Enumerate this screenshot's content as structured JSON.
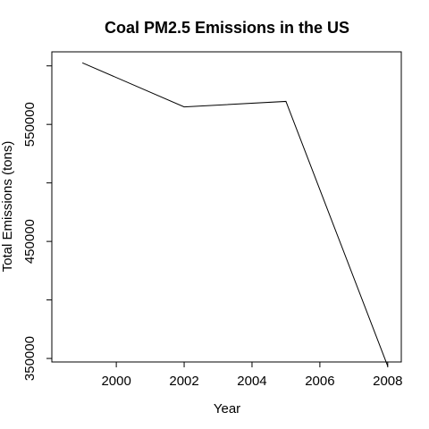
{
  "chart_data": {
    "type": "line",
    "title": "Coal PM2.5 Emissions in the US",
    "xlabel": "Year",
    "ylabel": "Total Emissions (tons)",
    "x": [
      1999,
      2002,
      2005,
      2008
    ],
    "series": [
      {
        "values": [
          602624,
          564940,
          569655,
          343432
        ]
      }
    ],
    "xlim": [
      1998.1,
      2008.4
    ],
    "ylim": [
      347000,
      612000
    ],
    "xticks": [
      2000,
      2002,
      2004,
      2006,
      2008
    ],
    "xtick_labels": [
      "2000",
      "2002",
      "2004",
      "2006",
      "2008"
    ],
    "yticks": [
      350000,
      400000,
      450000,
      500000,
      550000,
      600000
    ],
    "ytick_labels": [
      "350000",
      "",
      "450000",
      "",
      "550000",
      ""
    ],
    "grid": false,
    "line_color": "#000000"
  }
}
